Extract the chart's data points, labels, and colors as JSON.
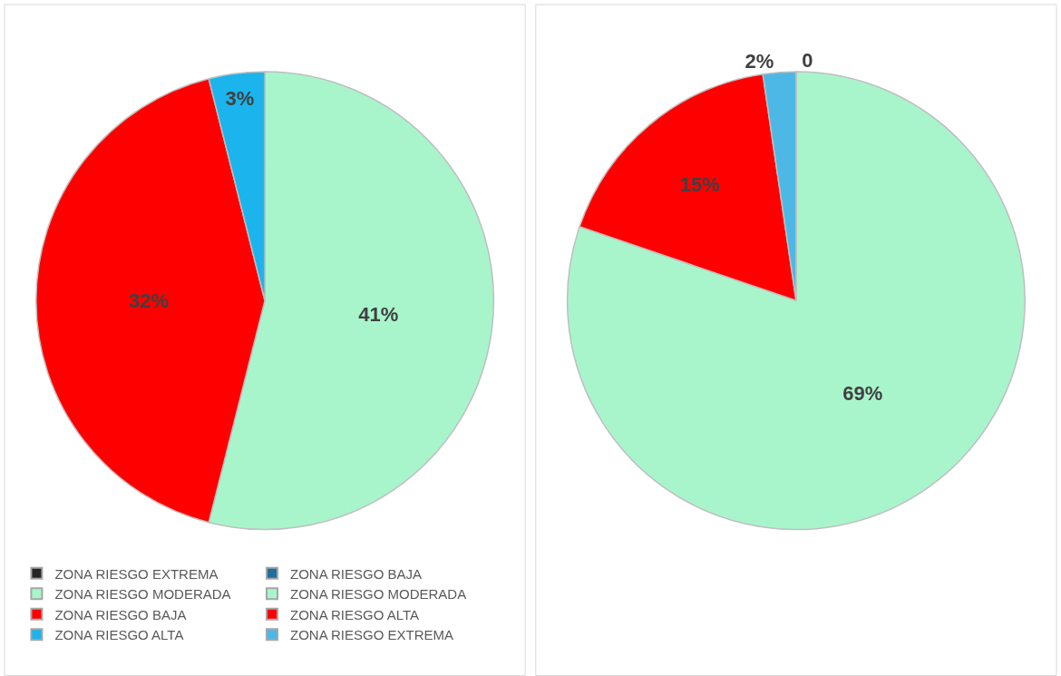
{
  "chart_data": [
    {
      "type": "pie",
      "categories": [
        "ZONA RIESGO EXTREMA",
        "ZONA RIESGO MODERADA",
        "ZONA RIESGO BAJA",
        "ZONA RIESGO ALTA"
      ],
      "values": [
        0,
        41,
        32,
        3
      ],
      "colors": [
        "#262626",
        "#a8f5cc",
        "#ff0000",
        "#1cb4ec"
      ],
      "value_labels": [
        null,
        "41%",
        "32%",
        "3%"
      ],
      "legend": "bottom"
    },
    {
      "type": "pie",
      "categories": [
        "ZONA RIESGO BAJA",
        "ZONA RIESGO MODERADA",
        "ZONA RIESGO ALTA",
        "ZONA RIESGO EXTREMA"
      ],
      "values": [
        0,
        69,
        15,
        2
      ],
      "colors": [
        "#1f6f9c",
        "#a8f5cc",
        "#ff0000",
        "#4db8e6"
      ],
      "value_labels": [
        "0",
        "69%",
        "15%",
        "2%"
      ],
      "legend": "bottom"
    }
  ]
}
